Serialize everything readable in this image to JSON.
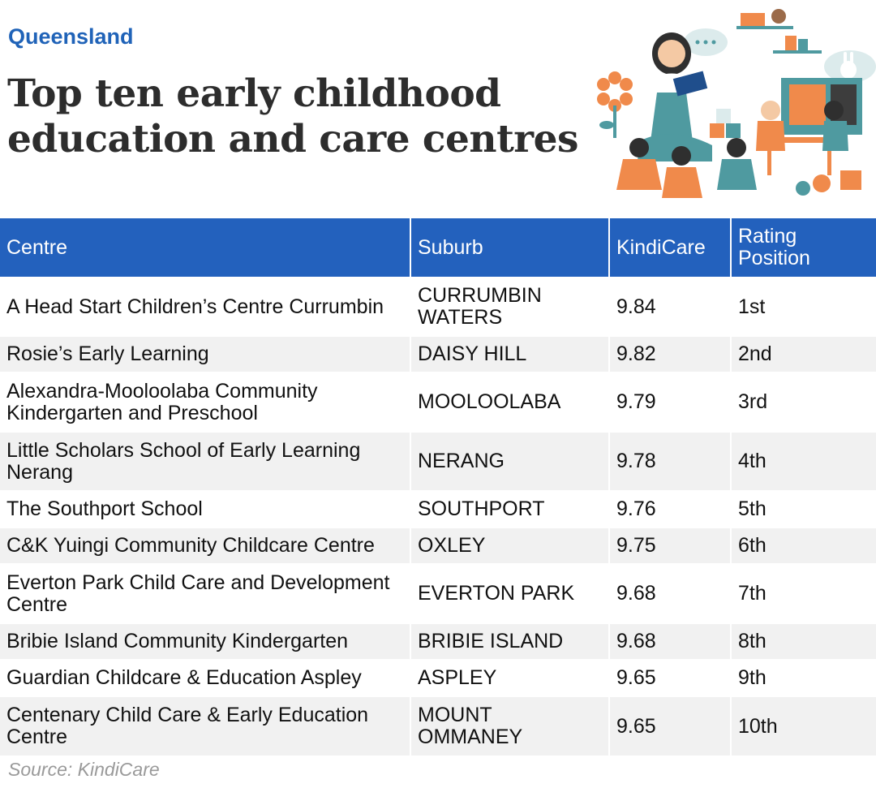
{
  "header": {
    "kicker": "Queensland",
    "title": "Top ten early childhood education and care centres"
  },
  "illustration": {
    "icon": "classroom-teacher-reading-illustration",
    "colors": {
      "orange": "#f08a4b",
      "teal": "#4f9aa0",
      "skin": "#f4c9a4",
      "dark": "#2f2f2f"
    }
  },
  "chart_data": {
    "type": "table",
    "columns": [
      "Centre",
      "Suburb",
      "KindiCare",
      "Rating Position"
    ],
    "rows": [
      [
        "A Head Start Children’s Centre Currumbin",
        "CURRUMBIN WATERS",
        "9.84",
        "1st"
      ],
      [
        "Rosie’s Early Learning",
        "DAISY HILL",
        "9.82",
        "2nd"
      ],
      [
        "Alexandra-Mooloolaba Community Kindergarten and Preschool",
        "MOOLOOLABA",
        "9.79",
        "3rd"
      ],
      [
        "Little Scholars School of Early Learning Nerang",
        "NERANG",
        "9.78",
        "4th"
      ],
      [
        "The Southport School",
        "SOUTHPORT",
        "9.76",
        "5th"
      ],
      [
        "C&K Yuingi Community Childcare Centre",
        "OXLEY",
        "9.75",
        "6th"
      ],
      [
        "Everton Park Child Care and Development Centre",
        "EVERTON PARK",
        "9.68",
        "7th"
      ],
      [
        "Bribie Island Community Kindergarten",
        "BRIBIE ISLAND",
        "9.68",
        "8th"
      ],
      [
        "Guardian Childcare & Education Aspley",
        "ASPLEY",
        "9.65",
        "9th"
      ],
      [
        "Centenary Child Care & Early Education Centre",
        "MOUNT OMMANEY",
        "9.65",
        "10th"
      ]
    ]
  },
  "footer": {
    "source": "Source: KindiCare"
  },
  "colors": {
    "header_bg": "#2361bd",
    "kicker": "#2063b8",
    "stripe": "#f1f1f1"
  }
}
